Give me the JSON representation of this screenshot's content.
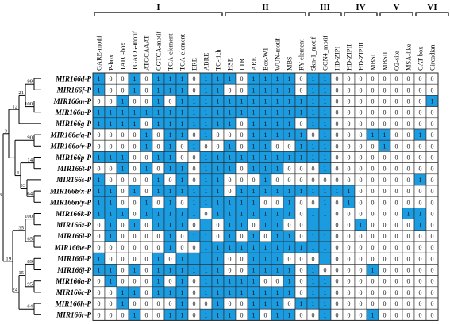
{
  "colors": {
    "present": "#1b9be0",
    "absent": "#ffffff",
    "grid": "#2a2a2a",
    "tree": "#000000"
  },
  "groups": [
    {
      "label": "I",
      "start": 0,
      "end": 10
    },
    {
      "label": "II",
      "start": 11,
      "end": 17
    },
    {
      "label": "III",
      "start": 18,
      "end": 20
    },
    {
      "label": "IV",
      "start": 21,
      "end": 23
    },
    {
      "label": "V",
      "start": 24,
      "end": 26
    },
    {
      "label": "VI",
      "start": 27,
      "end": 29
    }
  ],
  "columns": [
    "GARE-motif",
    "P-box",
    "TATC-box",
    "TGACG-motif",
    "ATGCAAAT",
    "CGTCA-motif",
    "TGA-element",
    "TCA-element",
    "ERE",
    "ABRE",
    "TC-rich",
    "HSE",
    "LTR",
    "ARE",
    "Box-W1",
    "WUN-motif",
    "MBS",
    "RY-element",
    "Skn-1_motif",
    "GCN4_motif",
    "HD-ZIPI",
    "HD-ZIPII",
    "HD-ZIPIII",
    "MBSI",
    "MBSII",
    "O2-site",
    "MSA-like",
    "CAT-box",
    "Circadian"
  ],
  "genes": [
    "MIR166d-P",
    "MIR166f-P",
    "MIR166m-P",
    "MIR166u-P",
    "MIR166g-P",
    "MIR166e/q-P",
    "MIR166o/v-P",
    "MIR166p-P",
    "MIR166t-P",
    "MIR166s-P",
    "MIR166b/x-P",
    "MIR166n/y-P",
    "MIR166k-P",
    "MIR166z-P",
    "MIR166l-P",
    "MIR166w-P",
    "MIR166i-P",
    "MIR166j-P",
    "MIR166a-P",
    "MIR166c-P",
    "MIR166h-P",
    "MIR166r-P"
  ],
  "matrix": [
    [
      1,
      0,
      0,
      1,
      0,
      1,
      1,
      1,
      0,
      1,
      1,
      1,
      0,
      1,
      1,
      1,
      1,
      0,
      1,
      1,
      0,
      0,
      0,
      0,
      0,
      0,
      0,
      0,
      0
    ],
    [
      1,
      0,
      0,
      1,
      0,
      1,
      1,
      1,
      0,
      1,
      1,
      0,
      0,
      1,
      1,
      1,
      1,
      0,
      1,
      1,
      0,
      0,
      0,
      0,
      0,
      0,
      0,
      0,
      0
    ],
    [
      0,
      0,
      1,
      0,
      0,
      1,
      0,
      1,
      1,
      1,
      1,
      1,
      1,
      1,
      1,
      1,
      1,
      1,
      1,
      1,
      0,
      0,
      0,
      0,
      0,
      0,
      0,
      0,
      1
    ],
    [
      1,
      1,
      1,
      1,
      1,
      1,
      1,
      1,
      1,
      1,
      1,
      1,
      1,
      1,
      1,
      1,
      1,
      1,
      1,
      1,
      0,
      0,
      0,
      0,
      0,
      0,
      0,
      0,
      0
    ],
    [
      1,
      1,
      1,
      1,
      0,
      1,
      1,
      1,
      1,
      1,
      1,
      1,
      0,
      1,
      1,
      1,
      1,
      0,
      1,
      1,
      0,
      0,
      0,
      0,
      0,
      0,
      0,
      0,
      0
    ],
    [
      0,
      0,
      0,
      0,
      1,
      0,
      1,
      1,
      0,
      1,
      0,
      0,
      0,
      1,
      1,
      1,
      1,
      1,
      0,
      1,
      0,
      0,
      0,
      1,
      1,
      0,
      0,
      1,
      0
    ],
    [
      0,
      0,
      0,
      0,
      1,
      0,
      1,
      0,
      1,
      0,
      0,
      1,
      0,
      1,
      1,
      0,
      0,
      1,
      1,
      1,
      0,
      0,
      0,
      0,
      1,
      0,
      0,
      0,
      0
    ],
    [
      1,
      1,
      1,
      0,
      0,
      1,
      1,
      0,
      0,
      1,
      1,
      1,
      1,
      1,
      1,
      1,
      1,
      1,
      1,
      1,
      0,
      0,
      0,
      0,
      0,
      0,
      0,
      0,
      0
    ],
    [
      0,
      0,
      1,
      0,
      1,
      0,
      1,
      1,
      0,
      1,
      1,
      1,
      0,
      1,
      1,
      1,
      0,
      0,
      0,
      1,
      0,
      0,
      0,
      0,
      0,
      0,
      0,
      0,
      0
    ],
    [
      1,
      0,
      0,
      0,
      0,
      1,
      0,
      1,
      0,
      1,
      1,
      0,
      0,
      0,
      1,
      0,
      0,
      0,
      0,
      0,
      0,
      0,
      0,
      0,
      0,
      0,
      0,
      1,
      0
    ],
    [
      1,
      1,
      0,
      1,
      0,
      1,
      1,
      1,
      1,
      1,
      1,
      0,
      1,
      1,
      1,
      1,
      1,
      1,
      1,
      1,
      1,
      1,
      0,
      0,
      0,
      0,
      0,
      0,
      0
    ],
    [
      1,
      1,
      0,
      0,
      1,
      0,
      1,
      0,
      1,
      1,
      1,
      1,
      1,
      1,
      0,
      0,
      1,
      0,
      0,
      1,
      0,
      1,
      0,
      0,
      0,
      0,
      0,
      0,
      0
    ],
    [
      1,
      1,
      1,
      0,
      1,
      1,
      1,
      1,
      1,
      0,
      1,
      1,
      1,
      1,
      1,
      1,
      1,
      0,
      1,
      1,
      0,
      0,
      0,
      0,
      0,
      0,
      1,
      1,
      0
    ],
    [
      0,
      1,
      0,
      1,
      0,
      1,
      1,
      1,
      0,
      1,
      0,
      1,
      1,
      0,
      1,
      1,
      0,
      0,
      1,
      1,
      0,
      0,
      1,
      0,
      0,
      0,
      0,
      1,
      0
    ],
    [
      0,
      1,
      0,
      0,
      0,
      0,
      1,
      0,
      1,
      1,
      0,
      1,
      0,
      1,
      0,
      1,
      1,
      0,
      1,
      1,
      0,
      0,
      0,
      0,
      0,
      0,
      0,
      0,
      0
    ],
    [
      0,
      0,
      0,
      0,
      0,
      0,
      1,
      0,
      0,
      1,
      1,
      1,
      1,
      1,
      1,
      1,
      1,
      1,
      1,
      1,
      0,
      0,
      0,
      0,
      0,
      0,
      0,
      0,
      0
    ],
    [
      1,
      0,
      0,
      0,
      0,
      1,
      0,
      1,
      1,
      1,
      1,
      0,
      0,
      1,
      1,
      1,
      0,
      0,
      0,
      1,
      0,
      0,
      0,
      0,
      0,
      0,
      0,
      0,
      0
    ],
    [
      1,
      1,
      0,
      1,
      0,
      1,
      1,
      1,
      1,
      1,
      1,
      0,
      0,
      1,
      1,
      1,
      1,
      0,
      1,
      0,
      0,
      0,
      0,
      1,
      0,
      0,
      0,
      0,
      0
    ],
    [
      0,
      1,
      0,
      0,
      0,
      1,
      0,
      1,
      0,
      1,
      1,
      1,
      1,
      1,
      0,
      0,
      1,
      0,
      1,
      1,
      0,
      0,
      0,
      0,
      0,
      0,
      0,
      0,
      0
    ],
    [
      0,
      0,
      1,
      1,
      0,
      1,
      1,
      1,
      0,
      1,
      1,
      1,
      1,
      1,
      1,
      1,
      1,
      0,
      1,
      1,
      0,
      0,
      0,
      0,
      0,
      0,
      0,
      0,
      0
    ],
    [
      0,
      0,
      1,
      0,
      0,
      0,
      0,
      1,
      0,
      0,
      1,
      0,
      0,
      1,
      1,
      1,
      0,
      1,
      1,
      1,
      0,
      0,
      0,
      0,
      0,
      0,
      0,
      0,
      0
    ],
    [
      0,
      0,
      0,
      1,
      0,
      0,
      1,
      1,
      0,
      1,
      1,
      1,
      0,
      1,
      0,
      1,
      1,
      0,
      0,
      1,
      0,
      0,
      0,
      1,
      0,
      0,
      0,
      0,
      0
    ]
  ],
  "tree": {
    "bootstrap_labels": [
      "99",
      "21",
      "12",
      "100",
      "3",
      "90",
      "14",
      "4",
      "33",
      "64",
      "100",
      "35",
      "19",
      "65",
      "3",
      "89",
      "15",
      "95",
      "24",
      "64"
    ]
  }
}
